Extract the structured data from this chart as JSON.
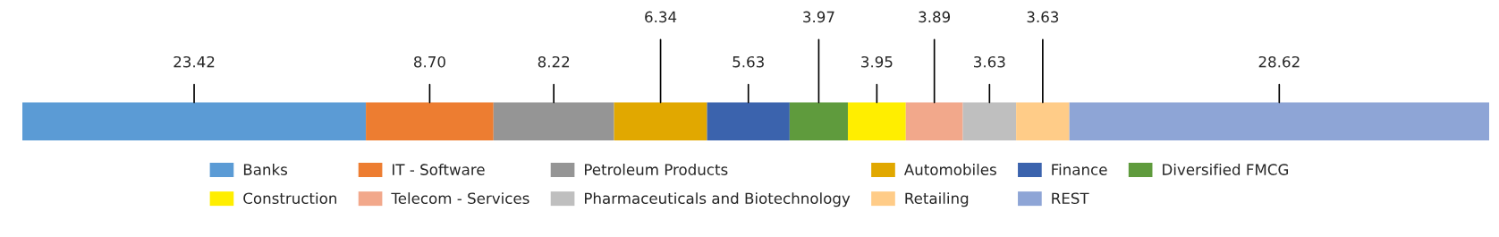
{
  "chart_data": {
    "type": "bar",
    "orientation": "horizontal",
    "stacked": true,
    "categories": [
      null
    ],
    "xlim": [
      0,
      100
    ],
    "tick_labels": false,
    "legend": "bottom",
    "series": [
      {
        "name": "Banks",
        "color": "#5b9bd5",
        "values": [
          23.42
        ],
        "value_labels": [
          "23.42"
        ]
      },
      {
        "name": "IT - Software",
        "color": "#ed7d31",
        "values": [
          8.7
        ],
        "value_labels": [
          "8.70"
        ]
      },
      {
        "name": "Petroleum Products",
        "color": "#959595",
        "values": [
          8.22
        ],
        "value_labels": [
          "8.22"
        ]
      },
      {
        "name": "Automobiles",
        "color": "#e1a800",
        "values": [
          6.34
        ],
        "value_labels": [
          "6.34"
        ]
      },
      {
        "name": "Finance",
        "color": "#3b63ad",
        "values": [
          5.63
        ],
        "value_labels": [
          "5.63"
        ]
      },
      {
        "name": "Diversified FMCG",
        "color": "#5f9b3d",
        "values": [
          3.97
        ],
        "value_labels": [
          "3.97"
        ]
      },
      {
        "name": "Construction",
        "color": "#ffee00",
        "values": [
          3.95
        ],
        "value_labels": [
          "3.95"
        ]
      },
      {
        "name": "Telecom - Services",
        "color": "#f2a88b",
        "values": [
          3.89
        ],
        "value_labels": [
          "3.89"
        ]
      },
      {
        "name": "Pharmaceuticals and Biotechnology",
        "color": "#bfbfbf",
        "values": [
          3.63
        ],
        "value_labels": [
          "3.63"
        ]
      },
      {
        "name": "Retailing",
        "color": "#ffcc88",
        "values": [
          3.63
        ],
        "value_labels": [
          "3.63"
        ]
      },
      {
        "name": "REST",
        "color": "#8ea5d6",
        "values": [
          28.62
        ],
        "value_labels": [
          "28.62"
        ]
      }
    ]
  }
}
